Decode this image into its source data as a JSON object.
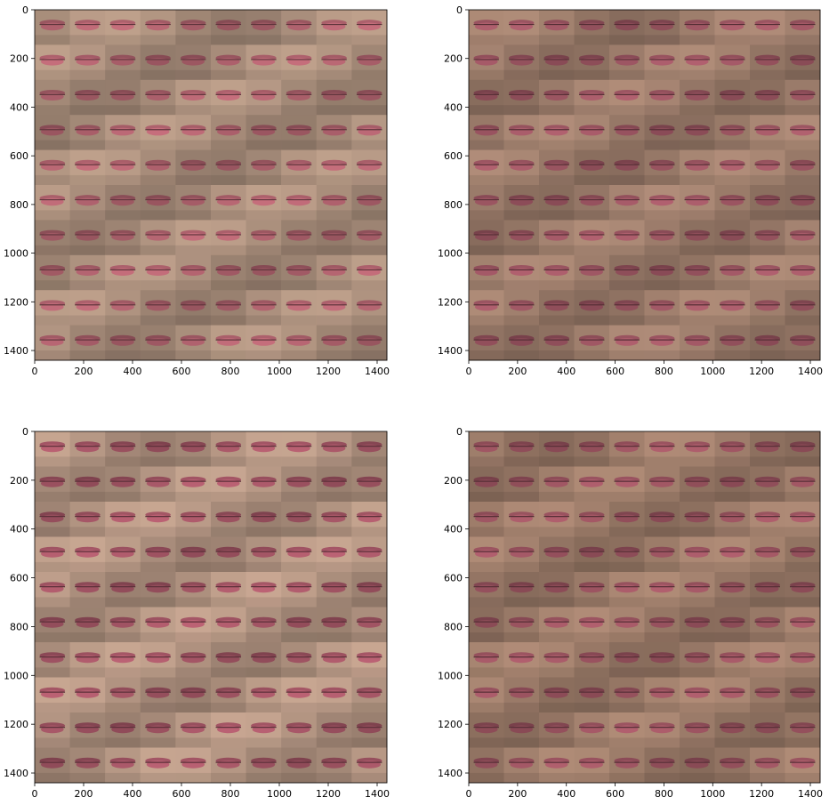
{
  "figure": {
    "description_kind": "image-grid",
    "panels": [
      {
        "id": "top-left",
        "x_ticks": [
          "0",
          "200",
          "400",
          "600",
          "800",
          "1000",
          "1200",
          "1400"
        ],
        "y_ticks": [
          "0",
          "200",
          "400",
          "600",
          "800",
          "1000",
          "1200",
          "1400"
        ],
        "tint": "#b79a86",
        "lip": "#b0626e",
        "grid": [
          10,
          10
        ]
      },
      {
        "id": "top-right",
        "x_ticks": [
          "0",
          "200",
          "400",
          "600",
          "800",
          "1000",
          "1200",
          "1400"
        ],
        "y_ticks": [
          "0",
          "200",
          "400",
          "600",
          "800",
          "1000",
          "1200",
          "1400"
        ],
        "tint": "#a98774",
        "lip": "#9e5663",
        "grid": [
          10,
          10
        ]
      },
      {
        "id": "bottom-left",
        "x_ticks": [
          "0",
          "200",
          "400",
          "600",
          "800",
          "1000",
          "1200",
          "1400"
        ],
        "y_ticks": [
          "0",
          "200",
          "400",
          "600",
          "800",
          "1000",
          "1200",
          "1400"
        ],
        "tint": "#c0a08c",
        "lip": "#a75767",
        "grid": [
          10,
          10
        ]
      },
      {
        "id": "bottom-right",
        "x_ticks": [
          "0",
          "200",
          "400",
          "600",
          "800",
          "1000",
          "1200",
          "1400"
        ],
        "y_ticks": [
          "0",
          "200",
          "400",
          "600",
          "800",
          "1000",
          "1200",
          "1400"
        ],
        "tint": "#a98672",
        "lip": "#9e5562",
        "grid": [
          10,
          10
        ]
      }
    ],
    "axis_max": 1440
  }
}
